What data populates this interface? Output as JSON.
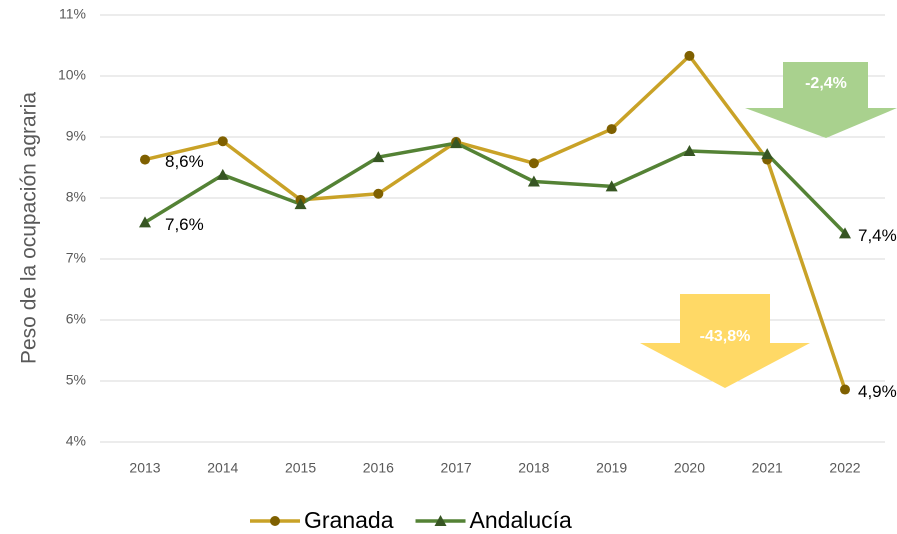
{
  "chart_data": {
    "type": "line",
    "y_axis_label": "Peso de la ocupación agraria",
    "categories": [
      "2013",
      "2014",
      "2015",
      "2016",
      "2017",
      "2018",
      "2019",
      "2020",
      "2021",
      "2022"
    ],
    "series": [
      {
        "name": "Granada",
        "color": "#c9a227",
        "marker_color": "#7f6000",
        "marker": "circle",
        "values": [
          8.63,
          8.93,
          7.97,
          8.07,
          8.92,
          8.57,
          9.13,
          10.33,
          8.63,
          4.86
        ],
        "value_labels": [
          "8,6%",
          null,
          null,
          null,
          null,
          null,
          null,
          null,
          null,
          "4,9%"
        ]
      },
      {
        "name": "Andalucía",
        "color": "#548235",
        "marker_color": "#375623",
        "marker": "triangle",
        "values": [
          7.6,
          8.38,
          7.9,
          8.67,
          8.9,
          8.27,
          8.19,
          8.77,
          8.72,
          7.42
        ],
        "value_labels": [
          "7,6%",
          null,
          null,
          null,
          null,
          null,
          null,
          null,
          null,
          "7,4%"
        ]
      }
    ],
    "ylim": [
      4,
      11
    ],
    "yticks": [
      {
        "value": 4,
        "label": "4%"
      },
      {
        "value": 5,
        "label": "5%"
      },
      {
        "value": 6,
        "label": "6%"
      },
      {
        "value": 7,
        "label": "7%"
      },
      {
        "value": 8,
        "label": "8%"
      },
      {
        "value": 9,
        "label": "9%"
      },
      {
        "value": 10,
        "label": "10%"
      },
      {
        "value": 11,
        "label": "11%"
      }
    ],
    "grid": true,
    "legend": "bottom",
    "annotations": [
      {
        "text": "-2,4%",
        "color": "#a9d18e"
      },
      {
        "text": "-43,8%",
        "color": "#ffd966"
      }
    ]
  }
}
